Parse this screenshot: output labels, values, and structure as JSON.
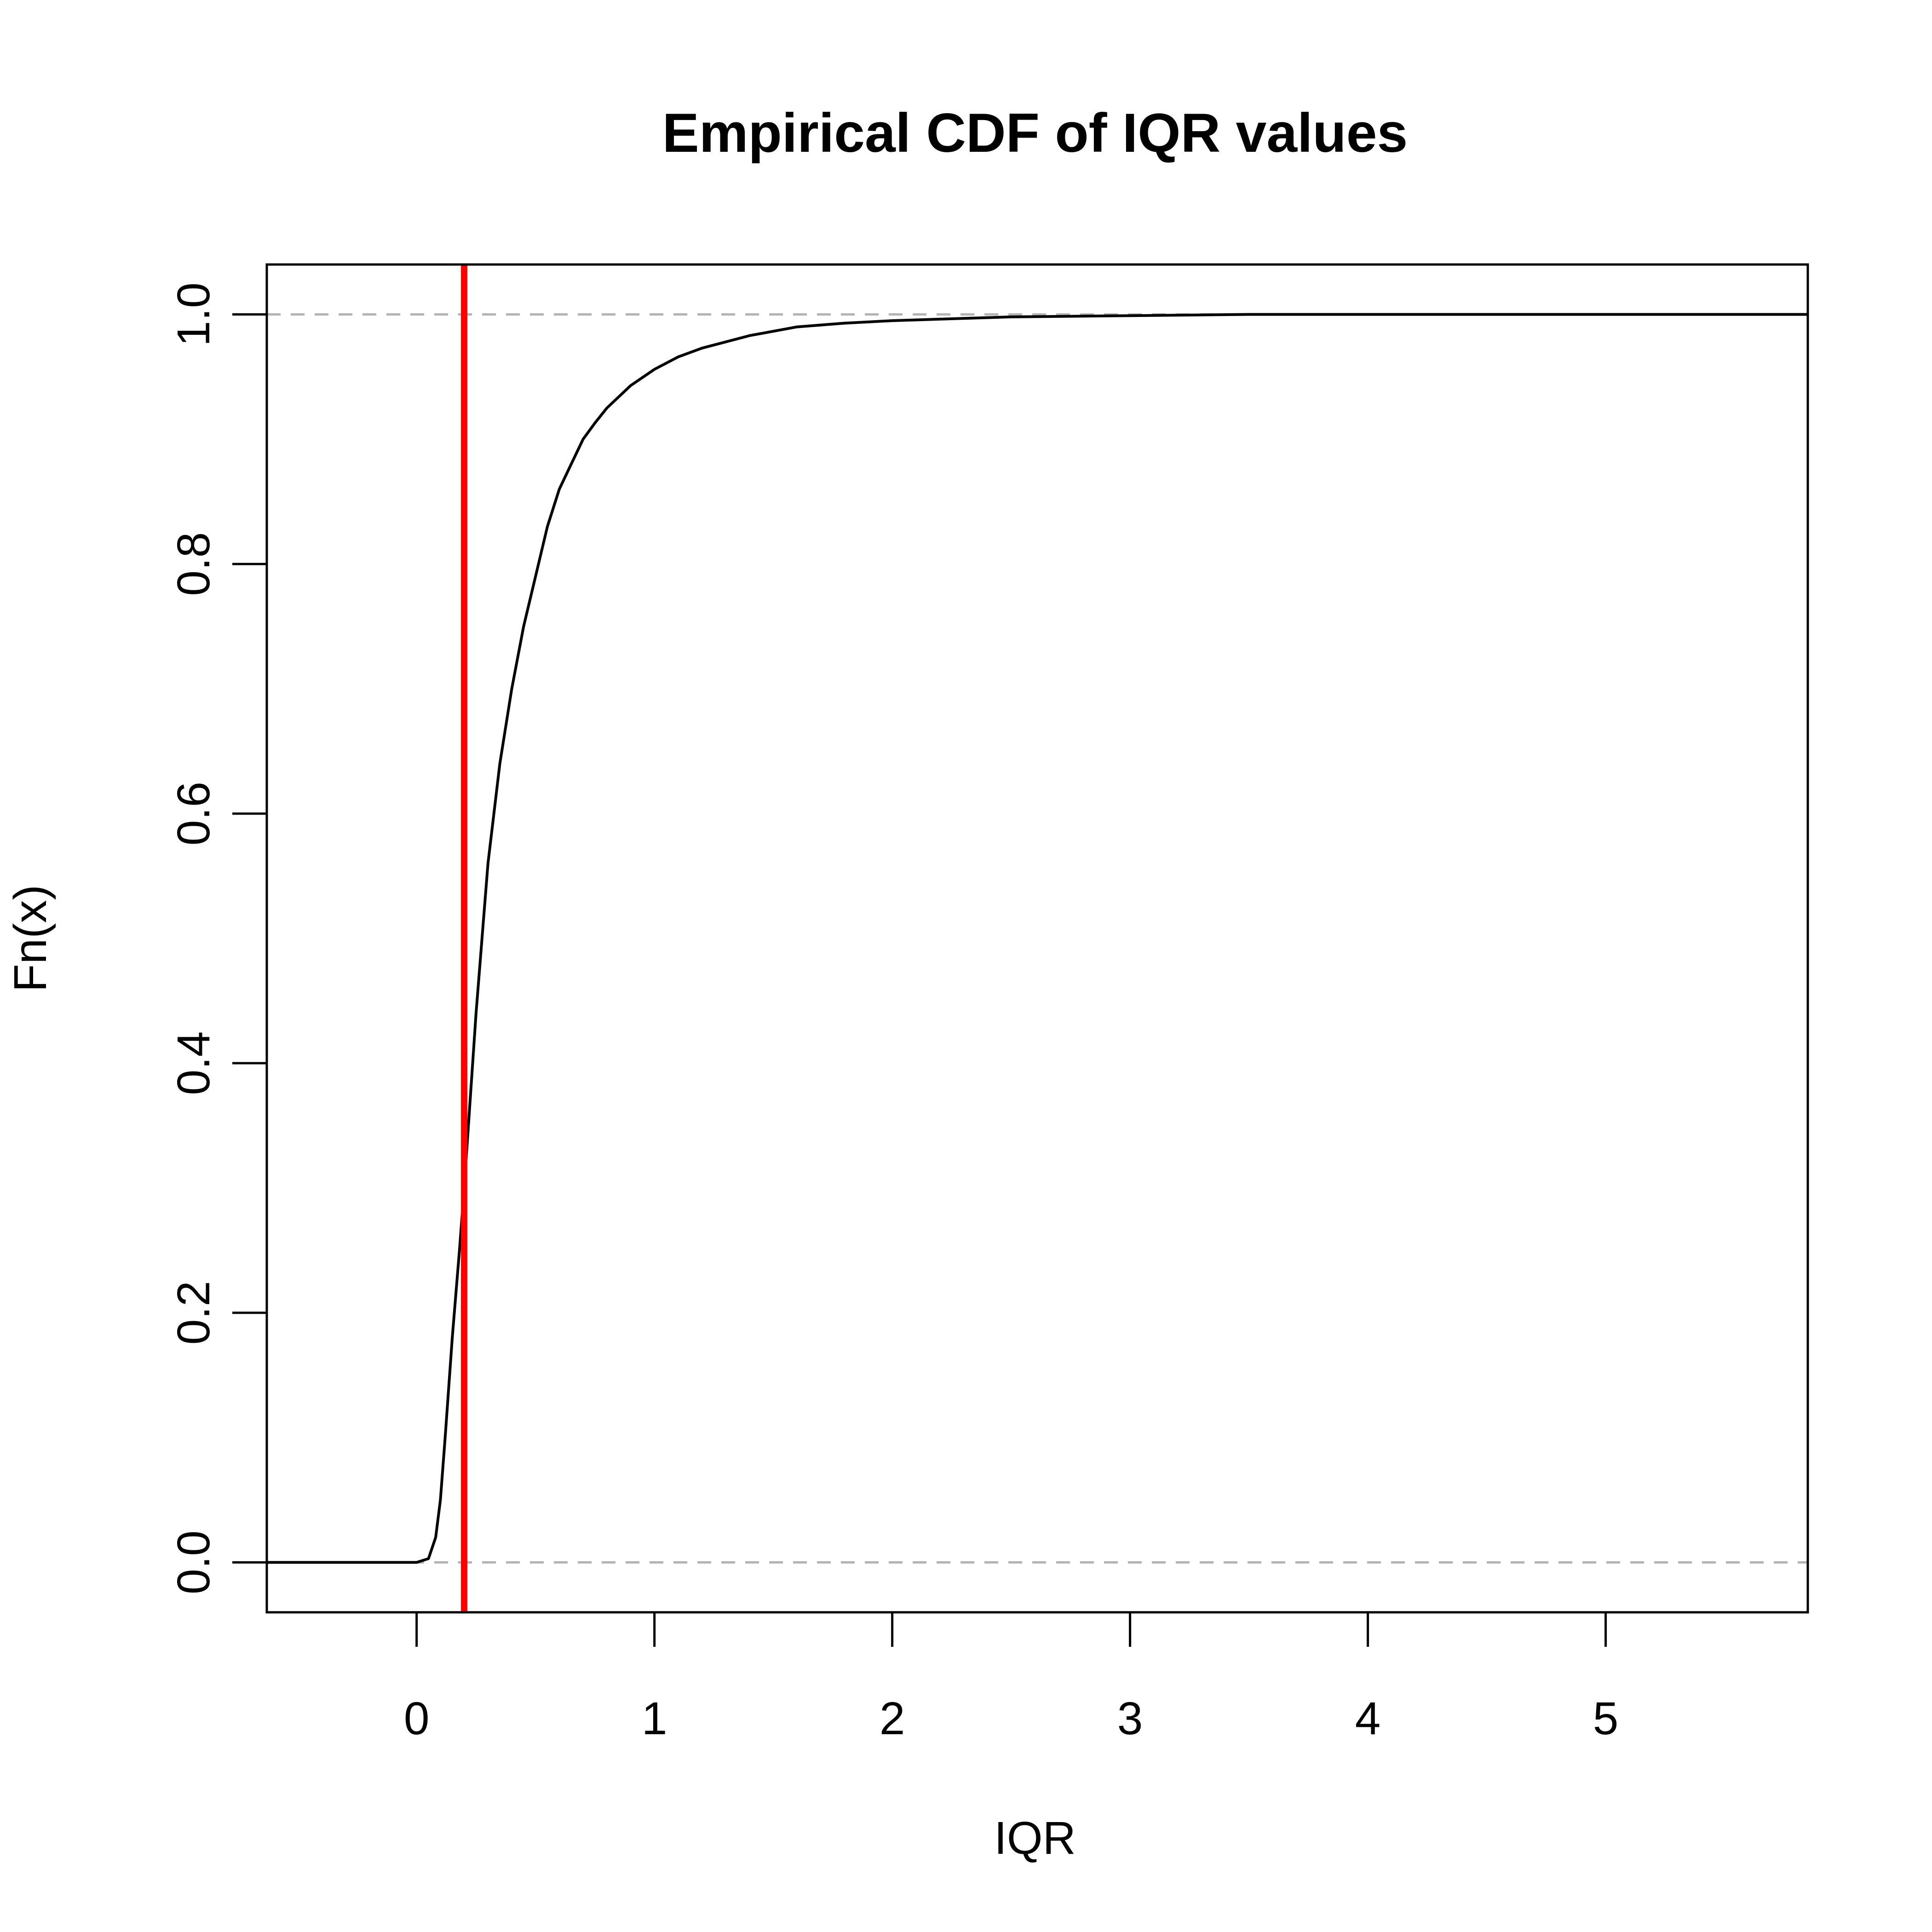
{
  "chart_data": {
    "type": "line",
    "title": "Empirical CDF of IQR values",
    "xlabel": "IQR",
    "ylabel": "Fn(x)",
    "xlim": [
      -0.63,
      5.85
    ],
    "ylim": [
      -0.04,
      1.04
    ],
    "x_ticks": [
      0,
      1,
      2,
      3,
      4,
      5
    ],
    "x_tick_labels": [
      "0",
      "1",
      "2",
      "3",
      "4",
      "5"
    ],
    "y_ticks": [
      0.0,
      0.2,
      0.4,
      0.6,
      0.8,
      1.0
    ],
    "y_tick_labels": [
      "0.0",
      "0.2",
      "0.4",
      "0.6",
      "0.8",
      "1.0"
    ],
    "reference_lines": [
      {
        "orientation": "horizontal",
        "y": 0.0,
        "style": "dashed",
        "color": "#b3b3b3"
      },
      {
        "orientation": "horizontal",
        "y": 1.0,
        "style": "dashed",
        "color": "#b3b3b3"
      },
      {
        "orientation": "vertical",
        "x": 0.2,
        "style": "solid",
        "color": "#ff0000"
      }
    ],
    "series": [
      {
        "color": "#000000",
        "x": [
          -0.63,
          0.0,
          0.05,
          0.08,
          0.1,
          0.12,
          0.15,
          0.18,
          0.2,
          0.25,
          0.3,
          0.35,
          0.4,
          0.45,
          0.5,
          0.55,
          0.6,
          0.65,
          0.7,
          0.75,
          0.8,
          0.9,
          1.0,
          1.1,
          1.2,
          1.4,
          1.6,
          1.8,
          2.0,
          2.5,
          3.0,
          3.5,
          4.0,
          5.0,
          5.85
        ],
        "y": [
          0.0,
          0.0,
          0.003,
          0.02,
          0.05,
          0.1,
          0.18,
          0.25,
          0.3,
          0.44,
          0.56,
          0.64,
          0.7,
          0.75,
          0.79,
          0.83,
          0.86,
          0.88,
          0.9,
          0.913,
          0.925,
          0.943,
          0.956,
          0.966,
          0.973,
          0.983,
          0.99,
          0.993,
          0.995,
          0.998,
          0.999,
          1.0,
          1.0,
          1.0,
          1.0
        ]
      }
    ]
  }
}
